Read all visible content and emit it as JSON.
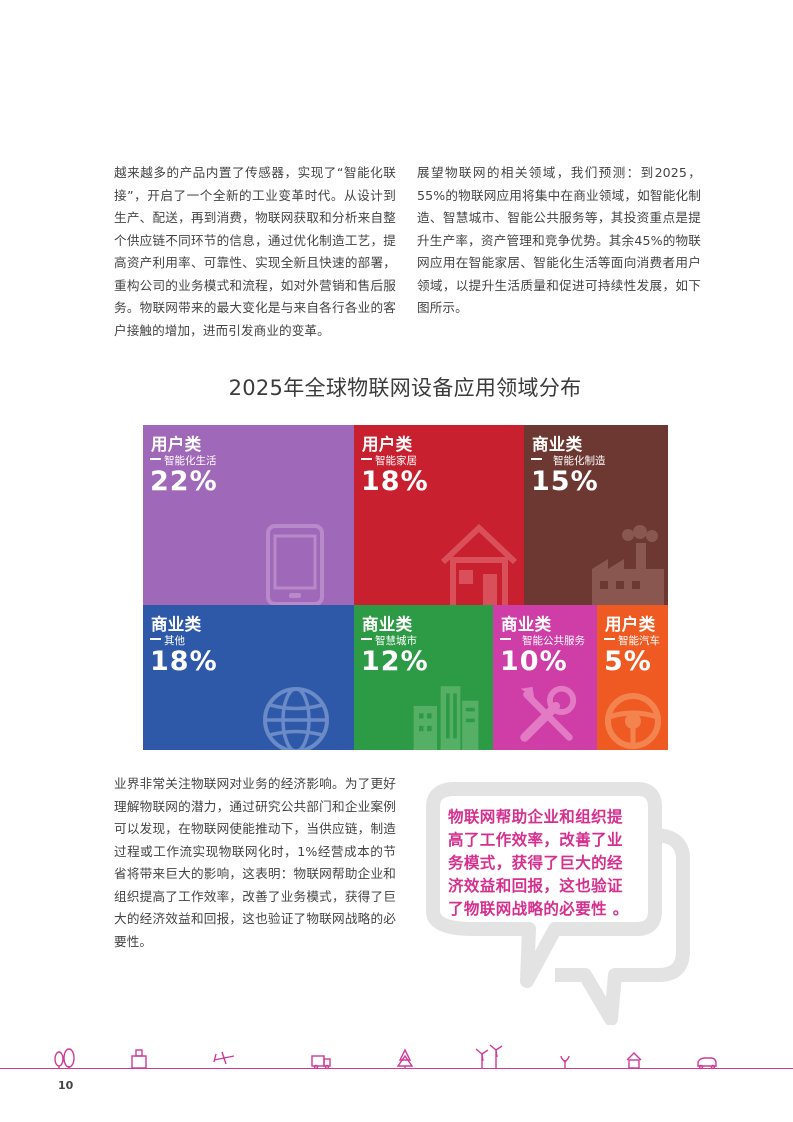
{
  "body": {
    "para1": "越来越多的产品内置了传感器，实现了“智能化联接”，开启了一个全新的工业变革时代。从设计到生产、配送，再到消费，物联网获取和分析来自整个供应链不同环节的信息，通过优化制造工艺，提高资产利用率、可靠性、实现全新且快速的部署，重构公司的业务模式和流程，如对外营销和售后服务。物联网带来的最大变化是与来自各行各业的客户接触的增加，进而引发商业的变革。",
    "para2": "展望物联网的相关领域，我们预测：到2025，55%的物联网应用将集中在商业领域，如智能化制造、智慧城市、智能公共服务等，其投资重点是提升生产率，资产管理和竞争优势。其余45%的物联网应用在智能家居、智能化生活等面向消费者用户领域，以提升生活质量和促进可持续性发展，如下图所示。",
    "para3": "业界非常关注物联网对业务的经济影响。为了更好理解物联网的潜力，通过研究公共部门和企业案例可以发现，在物联网使能推动下，当供应链，制造过程或工作流实现物联网化时，1%经营成本的节省将带来巨大的影响，这表明：物联网帮助企业和组织提高了工作效率，改善了业务模式，获得了巨大的经济效益和回报，这也验证了物联网战略的必要性。"
  },
  "chart_title": "2025年全球物联网设备应用领域分布",
  "chart_data": {
    "type": "treemap",
    "title": "2025年全球物联网设备应用领域分布",
    "tiles": [
      {
        "category": "用户类",
        "sub": "智能化生活",
        "pct": "22%",
        "value": 22,
        "color": "#a068b8",
        "icon": "phone-icon"
      },
      {
        "category": "用户类",
        "sub": "智能家居",
        "pct": "18%",
        "value": 18,
        "color": "#c8202e",
        "icon": "house-icon"
      },
      {
        "category": "商业类",
        "sub": "智能化制造",
        "pct": "15%",
        "value": 15,
        "color": "#6e3832",
        "icon": "factory-icon"
      },
      {
        "category": "商业类",
        "sub": "其他",
        "pct": "18%",
        "value": 18,
        "color": "#2e59a8",
        "icon": "globe-icon"
      },
      {
        "category": "商业类",
        "sub": "智慧城市",
        "pct": "12%",
        "value": 12,
        "color": "#2d9a45",
        "icon": "buildings-icon"
      },
      {
        "category": "商业类",
        "sub": "智能公共服务",
        "pct": "10%",
        "value": 10,
        "color": "#cf3ea6",
        "icon": "tools-icon"
      },
      {
        "category": "用户类",
        "sub": "智能汽车",
        "pct": "5%",
        "value": 5,
        "color": "#ee5a22",
        "icon": "steering-wheel-icon"
      }
    ]
  },
  "quote": "物联网帮助企业和组织提高了工作效率，改善了业务模式，获得了巨大的经济效益和回报，这也验证了物联网战略的必要性 。",
  "footer": {
    "page_number": "10",
    "icons": [
      "trees-icon",
      "building-icon",
      "airplane-icon",
      "truck-icon",
      "pine-tree-icon",
      "wind-turbine-icon",
      "sprout-icon",
      "house-icon",
      "car-icon"
    ]
  },
  "colors": {
    "accent": "#d6308f",
    "footer_line": "#d03a96",
    "bubble": "#e3e3e3"
  }
}
